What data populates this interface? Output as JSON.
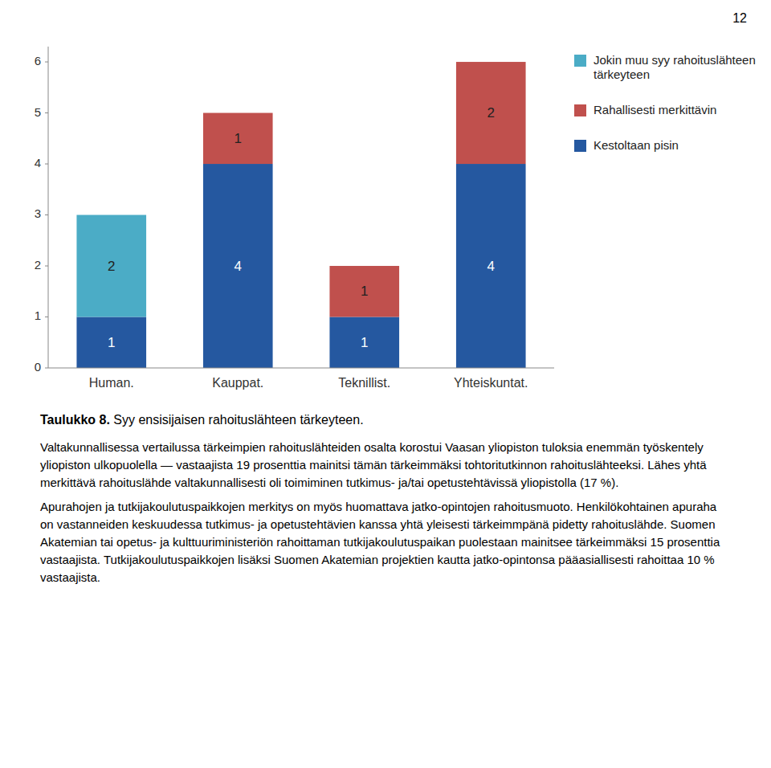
{
  "page_number": "12",
  "caption_bold": "Taulukko 8.",
  "caption_normal": " Syy ensisijaisen rahoituslähteen tärkeyteen.",
  "paragraphs": [
    "Valtakunnallisessa vertailussa tärkeimpien rahoituslähteiden osalta korostui Vaasan yliopiston tuloksia enemmän työskentely yliopiston ulkopuolella — vastaajista 19 prosenttia mainitsi tämän tärkeimmäksi tohtoritutkinnon rahoituslähteeksi. Lähes yhtä merkittävä rahoituslähde valtakunnallisesti oli toimiminen tutkimus- ja/tai opetustehtävissä yliopistolla (17 %).",
    "Apurahojen ja tutkijakoulutuspaikkojen merkitys on myös huomattava jatko-opintojen rahoitusmuoto. Henkilökohtainen apuraha on vastanneiden keskuudessa tutkimus- ja opetustehtävien kanssa yhtä yleisesti tärkeimmpänä pidetty rahoituslähde. Suomen Akatemian tai opetus- ja kulttuuriministeriön rahoittaman tutkijakoulutuspaikan puolestaan mainitsee tärkeimmäksi 15 prosenttia vastaajista. Tutkijakoulutuspaikkojen lisäksi Suomen Akatemian projektien kautta jatko-opintonsa pääasiallisesti rahoittaa 10 % vastaajista."
  ],
  "chart_data": {
    "type": "bar",
    "stacked": true,
    "data_labels": true,
    "grid": false,
    "legend": "upper right",
    "categories": [
      "Human.",
      "Kauppat.",
      "Teknillist.",
      "Yhteiskuntat."
    ],
    "series": [
      {
        "name": "Jokin muu syy rahoituslähteen\ntärkeyteen",
        "color": "#4BACC6",
        "values": [
          2,
          0,
          0,
          0
        ]
      },
      {
        "name": "Rahallisesti merkittävin",
        "color": "#C0504D",
        "values": [
          0,
          1,
          1,
          2
        ]
      },
      {
        "name": "Kestoltaan pisin",
        "color": "#2558A0",
        "values": [
          1,
          4,
          1,
          4
        ]
      }
    ],
    "ylim": [
      0,
      6.3
    ],
    "yticks": [
      0,
      1,
      2,
      3,
      4,
      5,
      6
    ]
  }
}
